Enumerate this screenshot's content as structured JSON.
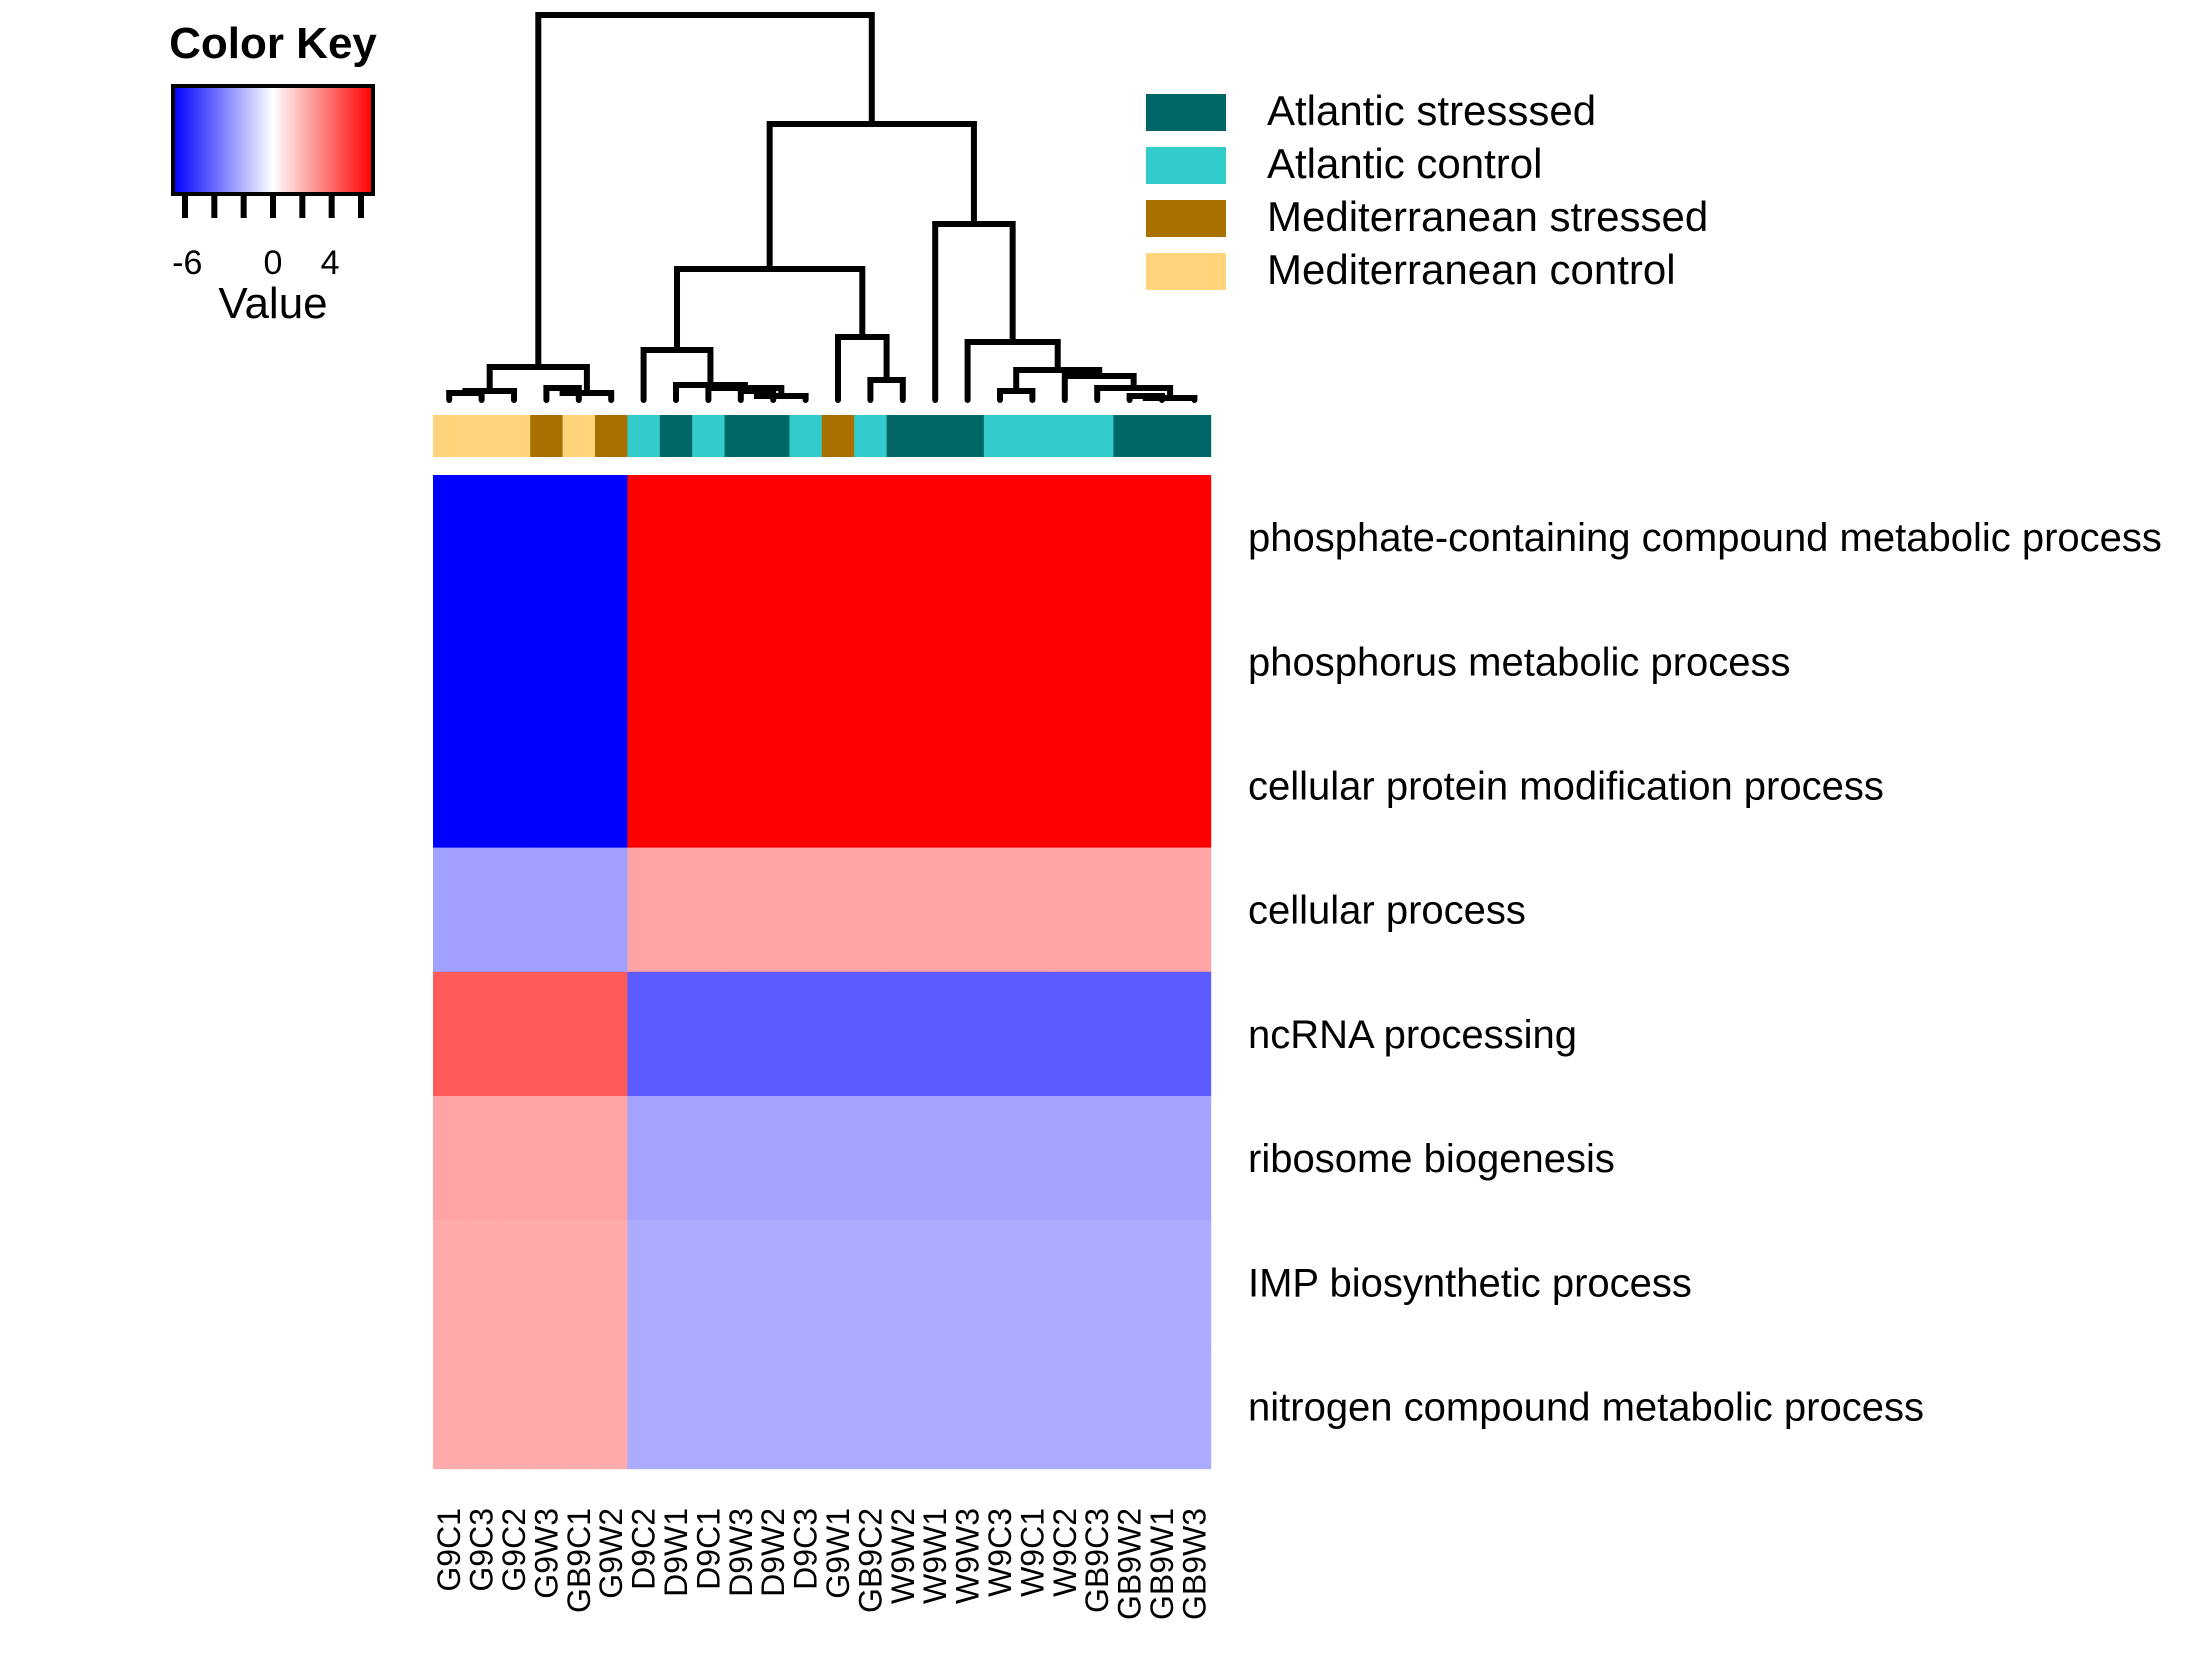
{
  "chart_data": {
    "type": "heatmap",
    "color_key": {
      "title": "Color Key",
      "label": "Value",
      "range": [
        -7,
        7
      ],
      "ticks": [
        "-6",
        "0",
        "4"
      ],
      "colors": [
        "#0000ff",
        "#ffffff",
        "#ff0000"
      ]
    },
    "columns": [
      "G9C1",
      "G9C3",
      "G9C2",
      "G9W3",
      "GB9C1",
      "G9W2",
      "D9C2",
      "D9W1",
      "D9C1",
      "D9W3",
      "D9W2",
      "D9C3",
      "G9W1",
      "GB9C2",
      "W9W2",
      "W9W1",
      "W9W3",
      "W9C3",
      "W9C1",
      "W9C2",
      "GB9C3",
      "GB9W2",
      "GB9W1",
      "GB9W3"
    ],
    "column_groups": [
      "Mediterranean control",
      "Mediterranean control",
      "Mediterranean control",
      "Mediterranean stressed",
      "Mediterranean control",
      "Mediterranean stressed",
      "Atlantic control",
      "Atlantic stresssed",
      "Atlantic control",
      "Atlantic stresssed",
      "Atlantic stresssed",
      "Atlantic control",
      "Mediterranean stressed",
      "Atlantic control",
      "Atlantic stresssed",
      "Atlantic stresssed",
      "Atlantic stresssed",
      "Atlantic control",
      "Atlantic control",
      "Atlantic control",
      "Atlantic control",
      "Atlantic stresssed",
      "Atlantic stresssed",
      "Atlantic stresssed"
    ],
    "legend": [
      {
        "name": "Atlantic stresssed",
        "color": "#006666"
      },
      {
        "name": "Atlantic control",
        "color": "#33cccc"
      },
      {
        "name": "Mediterranean stressed",
        "color": "#a87000"
      },
      {
        "name": "Mediterranean control",
        "color": "#ffd47a"
      }
    ],
    "rows": [
      "phosphate-containing compound metabolic process",
      "phosphorus metabolic process",
      "cellular protein modification process",
      "cellular process",
      "ncRNA processing",
      "ribosome biogenesis",
      "IMP biosynthetic process",
      "nitrogen compound metabolic process"
    ],
    "values_by_block": {
      "first_6_columns": [
        -7,
        -7,
        -7,
        -2.6,
        4.5,
        2.5,
        2.3,
        2.3
      ],
      "last_18_columns": [
        7,
        7,
        7,
        2.5,
        -4.5,
        -2.5,
        -2.3,
        -2.3
      ]
    }
  }
}
